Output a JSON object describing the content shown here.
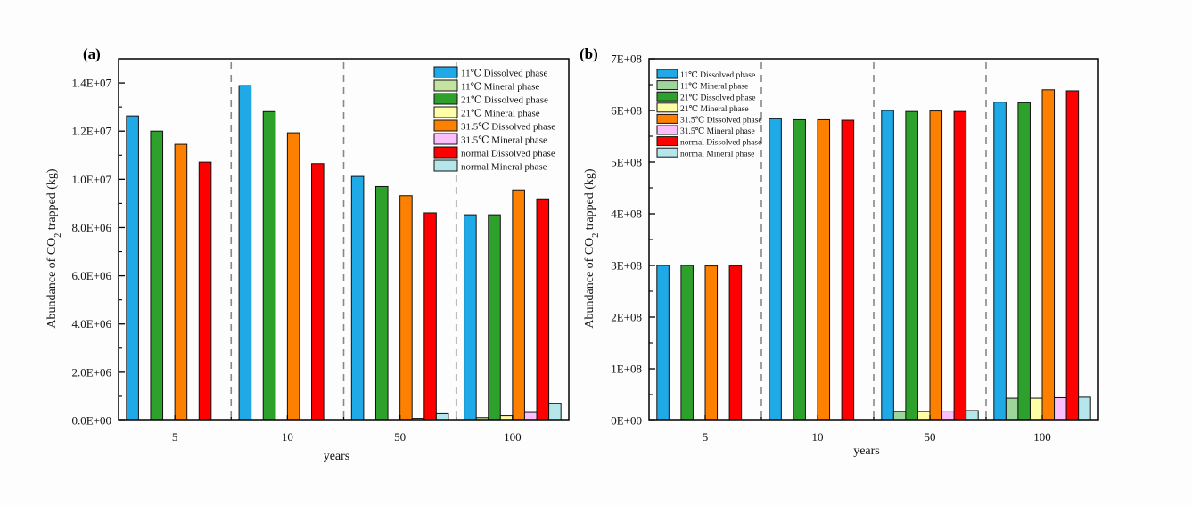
{
  "chart_data": [
    {
      "type": "bar",
      "panel_label": "(a)",
      "title": "",
      "xlabel": "years",
      "ylabel": "Abundance of CO2 trapped (kg)",
      "ylim": [
        0,
        15000000
      ],
      "yticks": [
        0,
        2000000,
        4000000,
        6000000,
        8000000,
        10000000,
        12000000,
        14000000
      ],
      "ytick_labels": [
        "0.0E+00",
        "2.0E+06",
        "4.0E+06",
        "6.0E+06",
        "8.0E+06",
        "1.0E+07",
        "1.2E+07",
        "1.4E+07"
      ],
      "categories": [
        "5",
        "10",
        "50",
        "100"
      ],
      "grid": false,
      "group_separators": "dashed",
      "legend_position": "top-right",
      "series": [
        {
          "name": "11℃ Dissolved phase",
          "color": "#1fa9e6",
          "values": [
            12630000,
            13890000,
            10120000,
            8530000
          ]
        },
        {
          "name": "11℃ Mineral phase",
          "color": "#c5e3a0",
          "values": [
            0,
            0,
            0,
            120000
          ]
        },
        {
          "name": "21℃ Dissolved phase",
          "color": "#2ea02c",
          "values": [
            12000000,
            12810000,
            9700000,
            8530000
          ]
        },
        {
          "name": "21℃ Mineral phase",
          "color": "#fefea6",
          "values": [
            0,
            0,
            0,
            200000
          ]
        },
        {
          "name": "31.5℃ Dissolved phase",
          "color": "#fe8000",
          "values": [
            11450000,
            11930000,
            9320000,
            9560000
          ]
        },
        {
          "name": "31.5℃ Mineral phase",
          "color": "#fdbefc",
          "values": [
            0,
            0,
            90000,
            330000
          ]
        },
        {
          "name": "normal Dissolved phase",
          "color": "#fe0000",
          "values": [
            10710000,
            10650000,
            8610000,
            9190000
          ]
        },
        {
          "name": "normal Mineral phase",
          "color": "#b5e6ec",
          "values": [
            0,
            0,
            280000,
            690000
          ]
        }
      ]
    },
    {
      "type": "bar",
      "panel_label": "(b)",
      "title": "",
      "xlabel": "years",
      "ylabel": "Abundance of CO2 trapped (kg)",
      "ylim": [
        0,
        700000000
      ],
      "yticks": [
        0,
        100000000,
        200000000,
        300000000,
        400000000,
        500000000,
        600000000,
        700000000
      ],
      "ytick_labels": [
        "0E+00",
        "1E+08",
        "2E+08",
        "3E+08",
        "4E+08",
        "5E+08",
        "6E+08",
        "7E+08"
      ],
      "categories": [
        "5",
        "10",
        "50",
        "100"
      ],
      "grid": false,
      "group_separators": "dashed",
      "legend_position": "top-left",
      "series": [
        {
          "name": "11℃ Dissolved phase",
          "color": "#1fa9e6",
          "values": [
            300000000,
            584000000,
            600000000,
            616000000
          ]
        },
        {
          "name": "11℃ Mineral phase",
          "color": "#9ed59a",
          "values": [
            0,
            0,
            17000000,
            43000000
          ]
        },
        {
          "name": "21℃ Dissolved phase",
          "color": "#2ea02c",
          "values": [
            300000000,
            582000000,
            598000000,
            615000000
          ]
        },
        {
          "name": "21℃ Mineral phase",
          "color": "#fefea6",
          "values": [
            0,
            0,
            17000000,
            43000000
          ]
        },
        {
          "name": "31.5℃ Dissolved phase",
          "color": "#fe8000",
          "values": [
            299000000,
            582000000,
            599000000,
            640000000
          ]
        },
        {
          "name": "31.5℃ Mineral phase",
          "color": "#fdbefc",
          "values": [
            0,
            0,
            18000000,
            44000000
          ]
        },
        {
          "name": "normal Dissolved phase",
          "color": "#fe0000",
          "values": [
            299000000,
            581000000,
            598000000,
            638000000
          ]
        },
        {
          "name": "normal Mineral phase",
          "color": "#b5e6ec",
          "values": [
            0,
            0,
            19000000,
            45000000
          ]
        }
      ]
    }
  ]
}
